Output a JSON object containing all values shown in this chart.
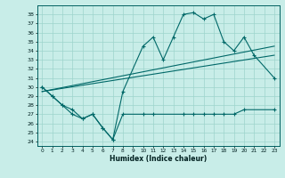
{
  "xlabel": "Humidex (Indice chaleur)",
  "bg_color": "#c8ede8",
  "grid_color": "#9dd4cc",
  "line_color": "#006868",
  "xlim": [
    -0.5,
    23.5
  ],
  "ylim": [
    23.5,
    39.0
  ],
  "xticks": [
    0,
    1,
    2,
    3,
    4,
    5,
    6,
    7,
    8,
    9,
    10,
    11,
    12,
    13,
    14,
    15,
    16,
    17,
    18,
    19,
    20,
    21,
    22,
    23
  ],
  "yticks": [
    24,
    25,
    26,
    27,
    28,
    29,
    30,
    31,
    32,
    33,
    34,
    35,
    36,
    37,
    38
  ],
  "upper_x": [
    0,
    1,
    2,
    3,
    4,
    5,
    6,
    7,
    8,
    10,
    11,
    12,
    13,
    14,
    15,
    16,
    17,
    18,
    19,
    20,
    21,
    23
  ],
  "upper_y": [
    30.0,
    29.0,
    28.0,
    27.5,
    26.5,
    27.0,
    25.5,
    24.2,
    29.5,
    34.5,
    35.5,
    33.0,
    35.5,
    38.0,
    38.2,
    37.5,
    38.0,
    35.0,
    34.0,
    35.5,
    33.5,
    31.0
  ],
  "lower_x": [
    0,
    1,
    2,
    3,
    4,
    5,
    6,
    7,
    8,
    10,
    11,
    14,
    15,
    16,
    17,
    18,
    19,
    20,
    23
  ],
  "lower_y": [
    30.0,
    29.0,
    28.0,
    27.0,
    26.5,
    27.0,
    25.5,
    24.2,
    27.0,
    27.0,
    27.0,
    27.0,
    27.0,
    27.0,
    27.0,
    27.0,
    27.0,
    27.5,
    27.5
  ],
  "trend1_x": [
    0,
    23
  ],
  "trend1_y": [
    29.5,
    34.5
  ],
  "trend2_x": [
    0,
    23
  ],
  "trend2_y": [
    29.5,
    33.5
  ]
}
